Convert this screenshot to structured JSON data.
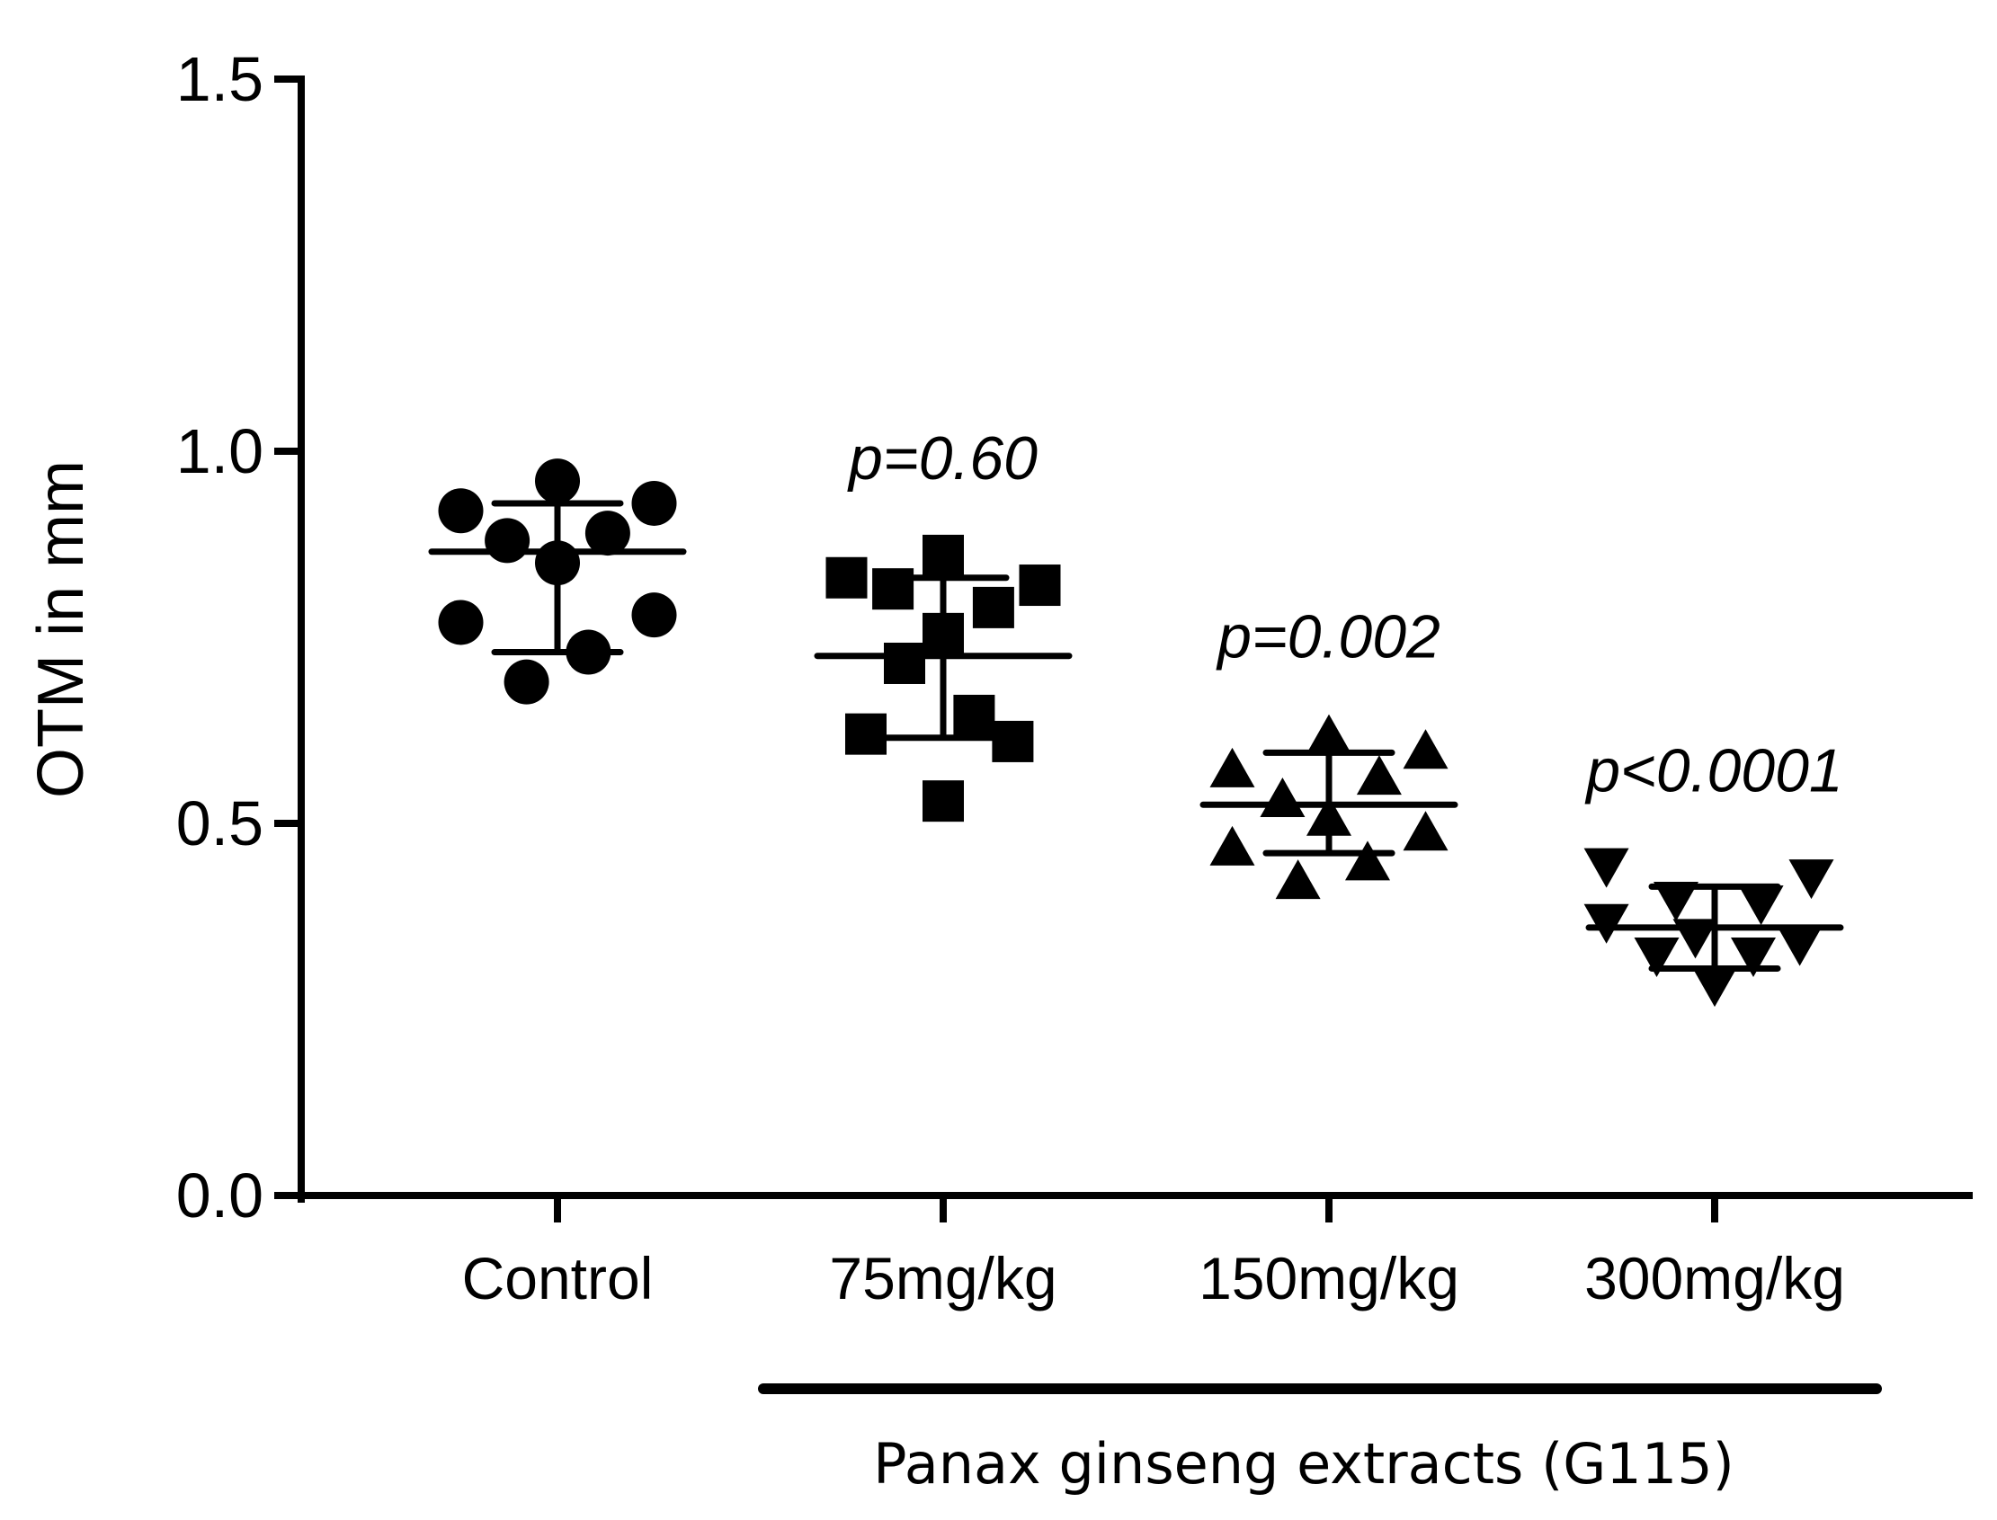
{
  "chart_data": {
    "type": "scatter",
    "title": "",
    "xlabel": "",
    "ylabel": "OTM in mm",
    "ylim": [
      0,
      1.5
    ],
    "yticks": [
      "0.0",
      "0.5",
      "1.0",
      "1.5"
    ],
    "ytick_values": [
      0,
      0.5,
      1.0,
      1.5
    ],
    "grid": false,
    "categories": [
      "Control",
      "75mg/kg",
      "150mg/kg",
      "300mg/kg"
    ],
    "group_label": "Panax ginseng extracts (G115)",
    "group_categories": [
      "75mg/kg",
      "150mg/kg",
      "300mg/kg"
    ],
    "series": [
      {
        "name": "Control",
        "marker": "circle",
        "mean": 0.865,
        "sd_low": 0.73,
        "sd_high": 0.93,
        "p_value": "",
        "points": [
          {
            "offset": -0.25,
            "y": 0.92
          },
          {
            "offset": -0.13,
            "y": 0.88
          },
          {
            "offset": 0.0,
            "y": 0.96
          },
          {
            "offset": 0.0,
            "y": 0.85
          },
          {
            "offset": 0.13,
            "y": 0.89
          },
          {
            "offset": 0.25,
            "y": 0.93
          },
          {
            "offset": -0.25,
            "y": 0.77
          },
          {
            "offset": 0.25,
            "y": 0.78
          },
          {
            "offset": 0.08,
            "y": 0.73
          },
          {
            "offset": -0.08,
            "y": 0.69
          }
        ]
      },
      {
        "name": "75mg/kg",
        "marker": "square",
        "mean": 0.725,
        "sd_low": 0.615,
        "sd_high": 0.83,
        "p_value": "p=0.60",
        "points": [
          {
            "offset": 0.0,
            "y": 0.86
          },
          {
            "offset": -0.25,
            "y": 0.83
          },
          {
            "offset": -0.13,
            "y": 0.815
          },
          {
            "offset": 0.25,
            "y": 0.82
          },
          {
            "offset": 0.13,
            "y": 0.79
          },
          {
            "offset": 0.0,
            "y": 0.755
          },
          {
            "offset": -0.1,
            "y": 0.715
          },
          {
            "offset": 0.08,
            "y": 0.645
          },
          {
            "offset": -0.2,
            "y": 0.62
          },
          {
            "offset": 0.18,
            "y": 0.61
          },
          {
            "offset": 0.0,
            "y": 0.53
          }
        ]
      },
      {
        "name": "150mg/kg",
        "marker": "triangle-up",
        "mean": 0.525,
        "sd_low": 0.46,
        "sd_high": 0.595,
        "p_value": "p=0.002",
        "points": [
          {
            "offset": 0.0,
            "y": 0.62
          },
          {
            "offset": 0.25,
            "y": 0.6
          },
          {
            "offset": -0.25,
            "y": 0.575
          },
          {
            "offset": 0.13,
            "y": 0.565
          },
          {
            "offset": -0.12,
            "y": 0.535
          },
          {
            "offset": 0.0,
            "y": 0.51
          },
          {
            "offset": -0.25,
            "y": 0.47
          },
          {
            "offset": 0.25,
            "y": 0.49
          },
          {
            "offset": 0.1,
            "y": 0.45
          },
          {
            "offset": -0.08,
            "y": 0.425
          }
        ]
      },
      {
        "name": "300mg/kg",
        "marker": "triangle-down",
        "mean": 0.36,
        "sd_low": 0.305,
        "sd_high": 0.415,
        "p_value": "p<0.0001",
        "points": [
          {
            "offset": -0.28,
            "y": 0.44
          },
          {
            "offset": 0.25,
            "y": 0.425
          },
          {
            "offset": -0.1,
            "y": 0.395
          },
          {
            "offset": 0.12,
            "y": 0.39
          },
          {
            "offset": -0.28,
            "y": 0.365
          },
          {
            "offset": -0.05,
            "y": 0.345
          },
          {
            "offset": 0.22,
            "y": 0.335
          },
          {
            "offset": -0.15,
            "y": 0.32
          },
          {
            "offset": 0.1,
            "y": 0.32
          },
          {
            "offset": 0.0,
            "y": 0.28
          }
        ]
      }
    ]
  }
}
